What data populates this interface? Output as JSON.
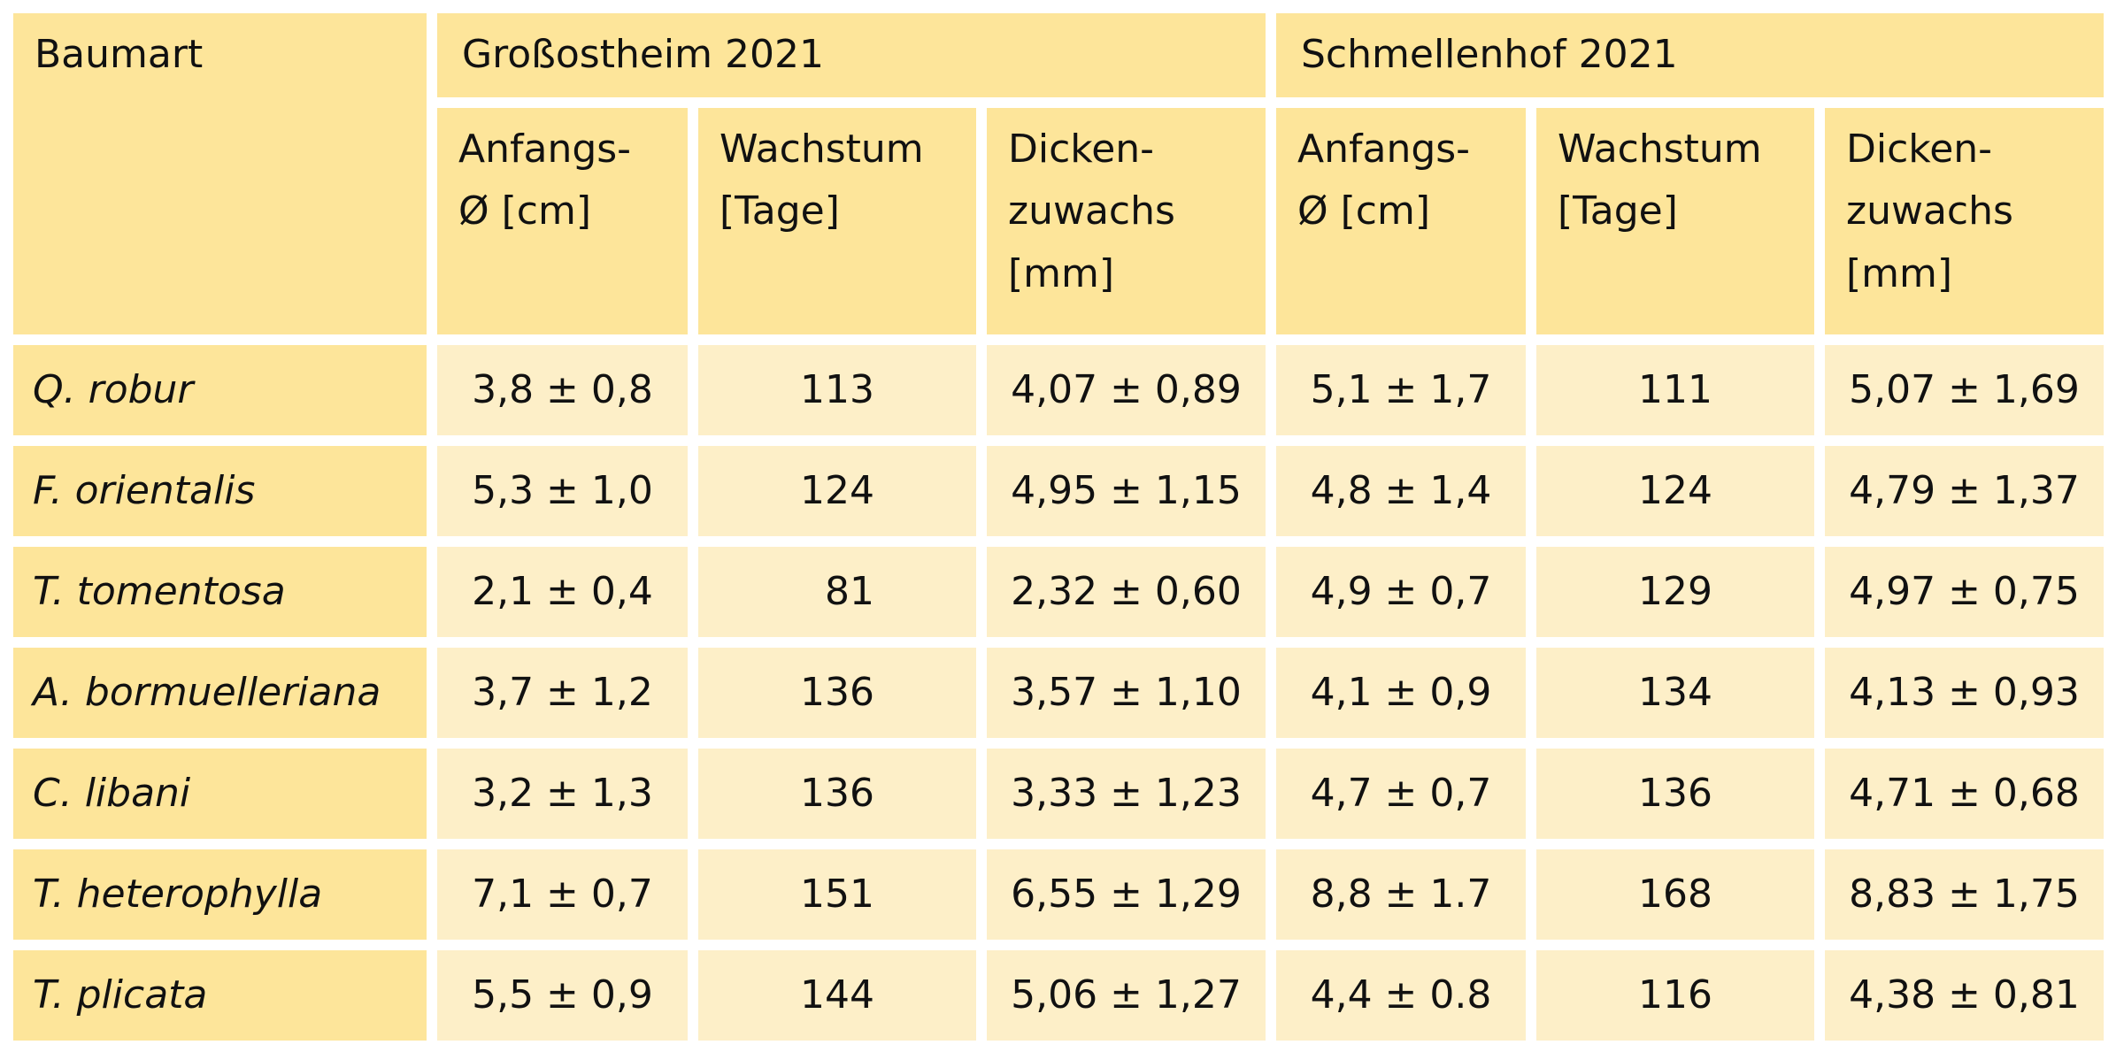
{
  "header": {
    "first": "Baumart",
    "groups": [
      "Großostheim 2021",
      "Schmellenhof 2021"
    ],
    "columns": [
      "Anfangs-\nØ [cm]",
      "Wachstum\n[Tage]",
      "Dicken-\nzuwachs\n[mm]",
      "Anfangs-\nØ [cm]",
      "Wachstum\n[Tage]",
      "Dicken-\nzuwachs\n[mm]"
    ]
  },
  "table": {
    "rows": [
      [
        "Q. robur",
        "3,8 ± 0,8",
        113,
        "4,07 ± 0,89",
        "5,1 ± 1,7",
        111,
        "5,07 ± 1,69"
      ],
      [
        "F. orientalis",
        "5,3 ± 1,0",
        124,
        "4,95 ± 1,15",
        "4,8 ± 1,4",
        124,
        "4,79 ± 1,37"
      ],
      [
        "T. tomentosa",
        "2,1 ± 0,4",
        81,
        "2,32 ± 0,60",
        "4,9 ± 0,7",
        129,
        "4,97 ± 0,75"
      ],
      [
        "A. bormuelleriana",
        "3,7 ± 1,2",
        136,
        "3,57 ± 1,10",
        "4,1 ± 0,9",
        134,
        "4,13 ± 0,93"
      ],
      [
        "C. libani",
        "3,2 ± 1,3",
        136,
        "3,33 ± 1,23",
        "4,7 ± 0,7",
        136,
        "4,71 ± 0,68"
      ],
      [
        "T. heterophylla",
        "7,1 ± 0,7",
        151,
        "6,55 ± 1,29",
        "8,8 ± 1.7",
        168,
        "8,83 ± 1,75"
      ],
      [
        "T. plicata",
        "5,5 ± 0,9",
        144,
        "5,06 ± 1,27",
        "4,4 ± 0.8",
        116,
        "4,38 ± 0,81"
      ]
    ]
  }
}
